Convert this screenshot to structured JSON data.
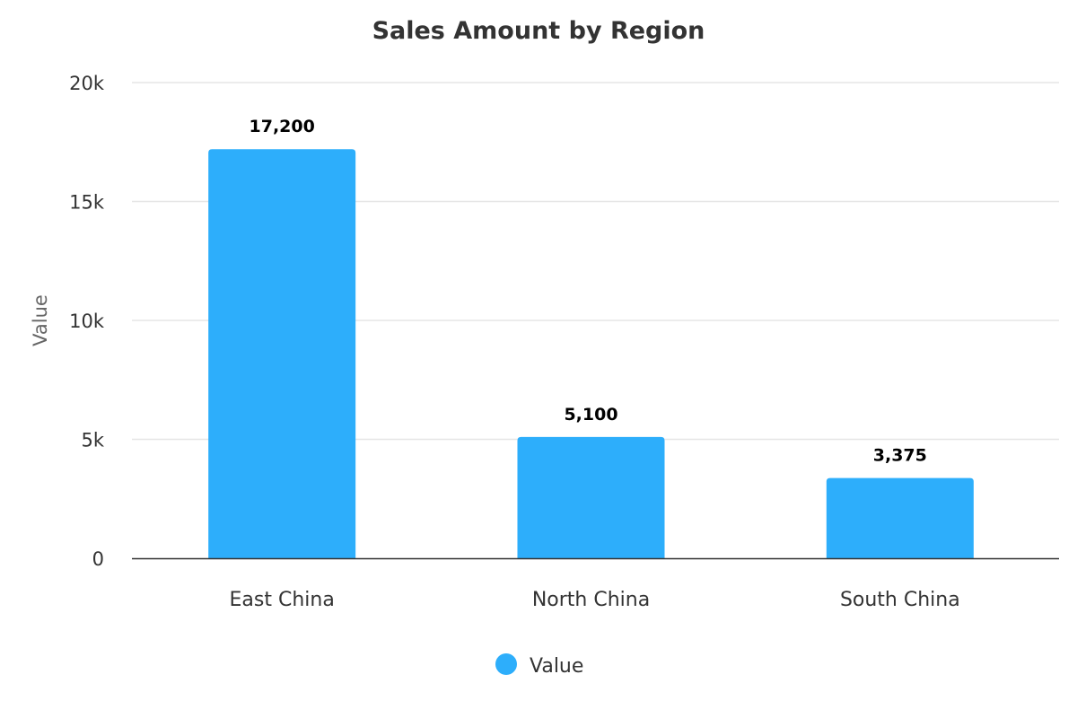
{
  "chart_data": {
    "type": "bar",
    "title": "Sales Amount by Region",
    "xlabel": "",
    "ylabel": "Value",
    "categories": [
      "East China",
      "North China",
      "South China"
    ],
    "series": [
      {
        "name": "Value",
        "values": [
          17200,
          5100,
          3375
        ]
      }
    ],
    "data_labels": [
      "17,200",
      "5,100",
      "3,375"
    ],
    "ylim": [
      0,
      20000
    ],
    "yticks": [
      0,
      5000,
      10000,
      15000,
      20000
    ],
    "ytick_labels": [
      "0",
      "5k",
      "10k",
      "15k",
      "20k"
    ],
    "grid": true,
    "legend": {
      "position": "bottom",
      "entries": [
        "Value"
      ]
    },
    "colors": {
      "bar": "#2DAEFB",
      "grid": "#e6e6e6",
      "axis": "#333333",
      "text": "#333333"
    }
  }
}
